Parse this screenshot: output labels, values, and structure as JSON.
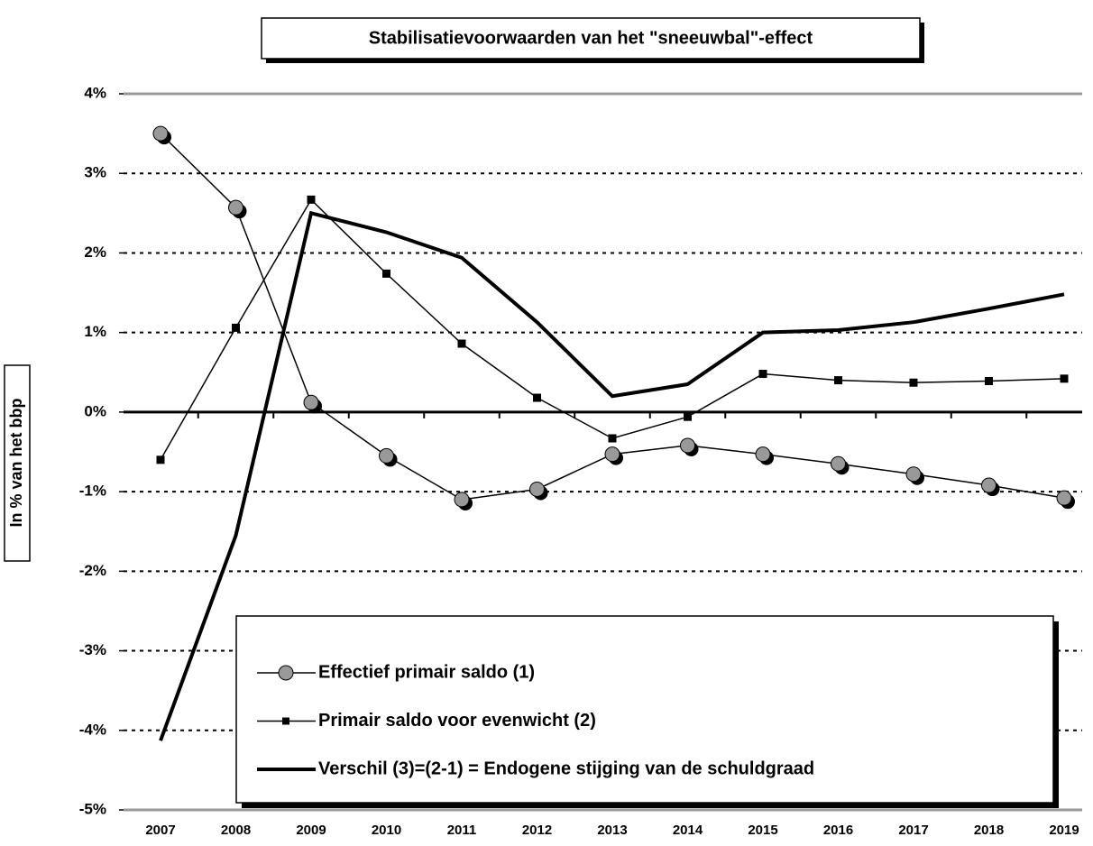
{
  "chart_data": {
    "type": "line",
    "title": "Stabilisatievoorwaarden van het \"sneeuwbal\"-effect",
    "y_label": "In % van het bbp",
    "categories": [
      "2007",
      "2008",
      "2009",
      "2010",
      "2011",
      "2012",
      "2013",
      "2014",
      "2015",
      "2016",
      "2017",
      "2018",
      "2019"
    ],
    "series": [
      {
        "name": "Effectief primair saldo (1)",
        "color": "#999999",
        "marker": "circle",
        "line_width": 1.5,
        "values": [
          3.5,
          2.57,
          0.12,
          -0.55,
          -1.1,
          -0.97,
          -0.53,
          -0.42,
          -0.53,
          -0.65,
          -0.78,
          -0.92,
          -1.08
        ]
      },
      {
        "name": "Primair saldo voor evenwicht (2)",
        "color": "#000000",
        "marker": "square",
        "line_width": 1.5,
        "values": [
          -0.6,
          1.06,
          2.67,
          1.74,
          0.86,
          0.18,
          -0.33,
          -0.06,
          0.48,
          0.4,
          0.37,
          0.39,
          0.42
        ]
      },
      {
        "name": "Verschil (3)=(2-1) = Endogene stijging van de schuldgraad",
        "color": "#000000",
        "marker": "none",
        "line_width": 4,
        "values": [
          -4.13,
          -1.55,
          2.5,
          2.26,
          1.94,
          1.13,
          0.2,
          0.35,
          1.0,
          1.03,
          1.13,
          1.3,
          1.48
        ]
      }
    ],
    "ylim": [
      -5,
      4
    ],
    "yticks": [
      {
        "value": -5,
        "label": "-5%"
      },
      {
        "value": -4,
        "label": "-4%"
      },
      {
        "value": -3,
        "label": "-3%"
      },
      {
        "value": -2,
        "label": "-2%"
      },
      {
        "value": -1,
        "label": "-1%"
      },
      {
        "value": 0,
        "label": "0%"
      },
      {
        "value": 1,
        "label": "1%"
      },
      {
        "value": 2,
        "label": "2%"
      },
      {
        "value": 3,
        "label": "3%"
      },
      {
        "value": 4,
        "label": "4%"
      }
    ],
    "grid": true
  }
}
